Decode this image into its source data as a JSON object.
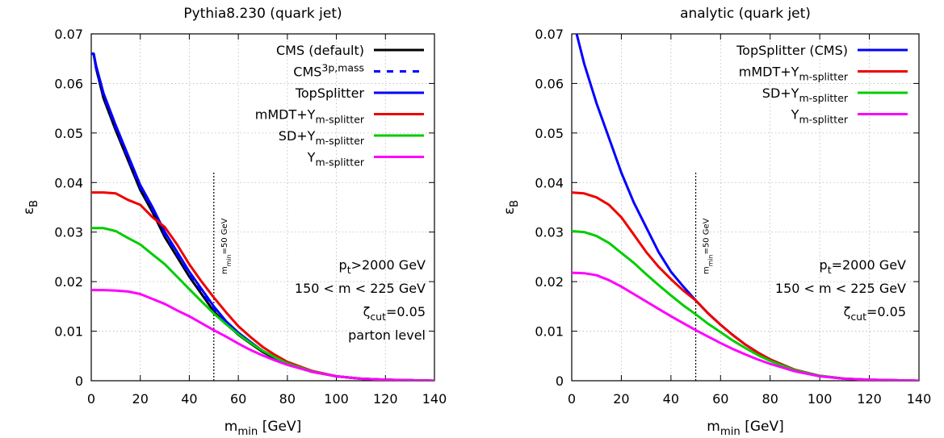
{
  "chart_data": [
    {
      "type": "line",
      "title": "Pythia8.230 (quark jet)",
      "xlabel": "m_min [GeV]",
      "ylabel": "ε_B",
      "xlim": [
        0,
        140
      ],
      "ylim": [
        0,
        0.07
      ],
      "x_ticks": [
        "0",
        "20",
        "40",
        "60",
        "80",
        "100",
        "120",
        "140"
      ],
      "y_ticks": [
        "0",
        "0.01",
        "0.02",
        "0.03",
        "0.04",
        "0.05",
        "0.06",
        "0.07"
      ],
      "grid": true,
      "legend_position": "top-right",
      "vline": {
        "x": 50,
        "label": "m_min=50 GeV"
      },
      "annotations": [
        "p_t>2000 GeV",
        "150 < m < 225 GeV",
        "ζ_cut=0.05",
        "parton level"
      ],
      "series": [
        {
          "name": "CMS (default)",
          "color": "#000000",
          "style": "solid",
          "x": [
            0,
            1,
            2,
            5,
            10,
            15,
            20,
            25,
            30,
            35,
            40,
            45,
            50,
            55,
            60,
            65,
            70,
            75,
            80,
            90,
            100,
            110,
            120,
            130,
            140
          ],
          "y": [
            0.066,
            0.066,
            0.063,
            0.057,
            0.0505,
            0.0445,
            0.0385,
            0.034,
            0.029,
            0.025,
            0.021,
            0.0175,
            0.014,
            0.0115,
            0.0093,
            0.0075,
            0.0058,
            0.0045,
            0.0035,
            0.0018,
            0.0009,
            0.0004,
            0.0002,
            0.0001,
            0.0
          ]
        },
        {
          "name": "CMS^3p,mass",
          "color": "#0000ff",
          "style": "dashed",
          "x": [
            0,
            1,
            2,
            5,
            10,
            15,
            20,
            25,
            30,
            35,
            40,
            45,
            50,
            55,
            60,
            65,
            70,
            75,
            80,
            90,
            100,
            110,
            120,
            130,
            140
          ],
          "y": [
            0.066,
            0.066,
            0.063,
            0.0575,
            0.051,
            0.045,
            0.039,
            0.0345,
            0.0295,
            0.0255,
            0.0215,
            0.018,
            0.0145,
            0.0118,
            0.0095,
            0.0077,
            0.006,
            0.0047,
            0.0036,
            0.0019,
            0.0009,
            0.0004,
            0.0002,
            0.0001,
            0.0
          ]
        },
        {
          "name": "TopSplitter",
          "color": "#0000ff",
          "style": "solid",
          "x": [
            0,
            1,
            2,
            5,
            10,
            15,
            20,
            25,
            30,
            35,
            40,
            45,
            50,
            55,
            60,
            65,
            70,
            75,
            80,
            90,
            100,
            110,
            120,
            130,
            140
          ],
          "y": [
            0.066,
            0.066,
            0.0635,
            0.058,
            0.0515,
            0.0455,
            0.0395,
            0.035,
            0.03,
            0.026,
            0.022,
            0.0185,
            0.015,
            0.012,
            0.0097,
            0.0078,
            0.006,
            0.0047,
            0.0036,
            0.0019,
            0.0009,
            0.0004,
            0.0002,
            0.0001,
            0.0
          ]
        },
        {
          "name": "mMDT+Y_m-splitter",
          "color": "#ee0000",
          "style": "solid",
          "x": [
            0,
            5,
            10,
            15,
            20,
            25,
            30,
            35,
            40,
            45,
            50,
            55,
            60,
            65,
            70,
            75,
            80,
            90,
            100,
            110,
            120,
            130,
            140
          ],
          "y": [
            0.038,
            0.038,
            0.0378,
            0.0365,
            0.0355,
            0.033,
            0.031,
            0.0275,
            0.0235,
            0.02,
            0.0168,
            0.0138,
            0.011,
            0.0088,
            0.0068,
            0.0052,
            0.0038,
            0.002,
            0.0009,
            0.0004,
            0.0002,
            0.0001,
            0.0
          ]
        },
        {
          "name": "SD+Y_m-splitter",
          "color": "#00cc00",
          "style": "solid",
          "x": [
            0,
            5,
            10,
            15,
            20,
            25,
            30,
            35,
            40,
            45,
            50,
            55,
            60,
            65,
            70,
            75,
            80,
            90,
            100,
            110,
            120,
            130,
            140
          ],
          "y": [
            0.0308,
            0.0308,
            0.0302,
            0.0288,
            0.0275,
            0.0255,
            0.0235,
            0.021,
            0.0185,
            0.016,
            0.0136,
            0.0114,
            0.0094,
            0.0076,
            0.006,
            0.0047,
            0.0035,
            0.0019,
            0.0009,
            0.0004,
            0.0002,
            0.0001,
            0.0
          ]
        },
        {
          "name": "Y_m-splitter",
          "color": "#ff00ff",
          "style": "solid",
          "x": [
            0,
            5,
            10,
            15,
            20,
            25,
            30,
            35,
            40,
            45,
            50,
            55,
            60,
            65,
            70,
            75,
            80,
            90,
            100,
            110,
            120,
            130,
            140
          ],
          "y": [
            0.0183,
            0.0183,
            0.0182,
            0.018,
            0.0175,
            0.0165,
            0.0155,
            0.0142,
            0.013,
            0.0116,
            0.0102,
            0.0089,
            0.0075,
            0.0062,
            0.0051,
            0.0041,
            0.0032,
            0.0018,
            0.0009,
            0.0004,
            0.0002,
            0.0001,
            0.0
          ]
        }
      ]
    },
    {
      "type": "line",
      "title": "analytic (quark jet)",
      "xlabel": "m_min [GeV]",
      "ylabel": "ε_B",
      "xlim": [
        0,
        140
      ],
      "ylim": [
        0,
        0.07
      ],
      "x_ticks": [
        "0",
        "20",
        "40",
        "60",
        "80",
        "100",
        "120",
        "140"
      ],
      "y_ticks": [
        "0",
        "0.01",
        "0.02",
        "0.03",
        "0.04",
        "0.05",
        "0.06",
        "0.07"
      ],
      "grid": true,
      "legend_position": "top-right",
      "vline": {
        "x": 50,
        "label": "m_min=50 GeV"
      },
      "annotations": [
        "p_t=2000 GeV",
        "150 < m < 225 GeV",
        "ζ_cut=0.05"
      ],
      "series": [
        {
          "name": "TopSplitter (CMS)",
          "color": "#0000ff",
          "style": "solid",
          "x": [
            2,
            5,
            10,
            15,
            20,
            25,
            30,
            35,
            40,
            45,
            50,
            55,
            60,
            65,
            70,
            75,
            80,
            90,
            100,
            110,
            120,
            130,
            140
          ],
          "y": [
            0.07,
            0.064,
            0.056,
            0.049,
            0.042,
            0.036,
            0.031,
            0.026,
            0.022,
            0.019,
            0.0162,
            0.0136,
            0.0113,
            0.0092,
            0.0073,
            0.0057,
            0.0043,
            0.0022,
            0.001,
            0.0004,
            0.0002,
            0.0001,
            0.0
          ]
        },
        {
          "name": "mMDT+Y_m-splitter",
          "color": "#ee0000",
          "style": "solid",
          "x": [
            0,
            5,
            10,
            15,
            20,
            25,
            30,
            35,
            40,
            45,
            50,
            55,
            60,
            65,
            70,
            75,
            80,
            90,
            100,
            110,
            120,
            130,
            140
          ],
          "y": [
            0.038,
            0.0378,
            0.037,
            0.0355,
            0.033,
            0.0295,
            0.026,
            0.023,
            0.0205,
            0.0182,
            0.0162,
            0.0136,
            0.0113,
            0.0092,
            0.0073,
            0.0057,
            0.0043,
            0.0022,
            0.001,
            0.0004,
            0.0002,
            0.0001,
            0.0
          ]
        },
        {
          "name": "SD+Y_m-splitter",
          "color": "#00cc00",
          "style": "solid",
          "x": [
            0,
            5,
            10,
            15,
            20,
            25,
            30,
            35,
            40,
            45,
            50,
            55,
            60,
            65,
            70,
            75,
            80,
            90,
            100,
            110,
            120,
            130,
            140
          ],
          "y": [
            0.0302,
            0.03,
            0.0292,
            0.0278,
            0.0258,
            0.0238,
            0.0215,
            0.0193,
            0.0172,
            0.0152,
            0.0134,
            0.0115,
            0.0098,
            0.0081,
            0.0066,
            0.0052,
            0.004,
            0.0021,
            0.001,
            0.0004,
            0.0002,
            0.0001,
            0.0
          ]
        },
        {
          "name": "Y_m-splitter",
          "color": "#ff00ff",
          "style": "solid",
          "x": [
            0,
            5,
            10,
            15,
            20,
            25,
            30,
            35,
            40,
            45,
            50,
            55,
            60,
            65,
            70,
            75,
            80,
            90,
            100,
            110,
            120,
            130,
            140
          ],
          "y": [
            0.0218,
            0.0217,
            0.0213,
            0.0203,
            0.019,
            0.0175,
            0.016,
            0.0145,
            0.013,
            0.0116,
            0.0102,
            0.0089,
            0.0076,
            0.0064,
            0.0053,
            0.0043,
            0.0034,
            0.0019,
            0.0009,
            0.0004,
            0.0002,
            0.0001,
            0.0
          ]
        }
      ]
    }
  ]
}
